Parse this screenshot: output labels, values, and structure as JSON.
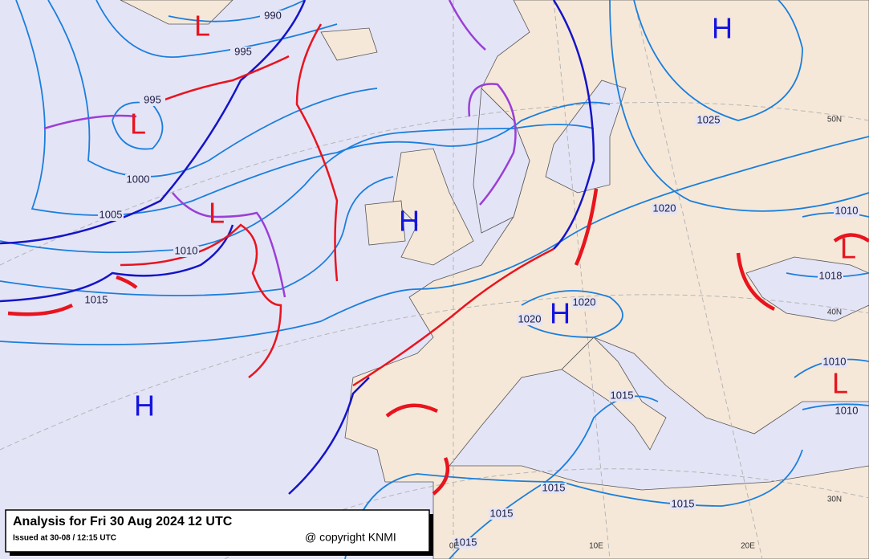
{
  "title": "Analysis for Fri 30 Aug 2024 12 UTC",
  "issued": "Issued at 30-08 / 12:15 UTC",
  "copyright": "@ copyright KNMI",
  "isobar_labels": [
    "990",
    "995",
    "995",
    "1000",
    "1005",
    "1010",
    "1015",
    "1025",
    "1020",
    "1020",
    "1020",
    "1015",
    "1015",
    "1015",
    "1015",
    "1015",
    "1010",
    "1018",
    "1010",
    "1010"
  ],
  "pressure_centers": [
    "L",
    "H",
    "L",
    "L",
    "H",
    "H",
    "L",
    "L",
    "H"
  ],
  "grid_labels": [
    "50N",
    "40N",
    "30N",
    "0E",
    "10E",
    "20E"
  ]
}
